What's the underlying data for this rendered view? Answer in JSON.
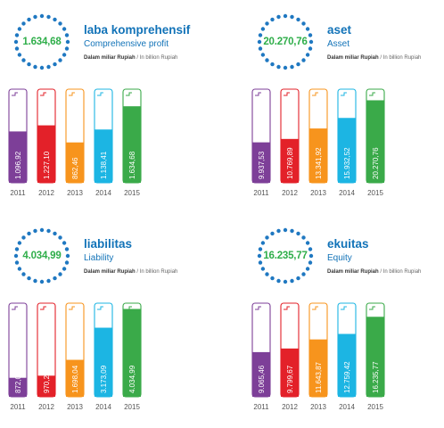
{
  "panels": [
    {
      "big_value": "1.634,68",
      "title": "laba komprehensif",
      "subtitle": "Comprehensive profit",
      "unit_id": "Dalam miliar Rupiah",
      "unit_en": " / In billion Rupiah"
    },
    {
      "big_value": "20.270,76",
      "title": "aset",
      "subtitle": "Asset",
      "unit_id": "Dalam miliar Rupiah",
      "unit_en": " / In billion Rupiah"
    },
    {
      "big_value": "4.034,99",
      "title": "liabilitas",
      "subtitle": "Liability",
      "unit_id": "Dalam miliar Rupiah",
      "unit_en": " / In billion Rupiah"
    },
    {
      "big_value": "16.235,77",
      "title": "ekuitas",
      "subtitle": "Equity",
      "unit_id": "Dalam miliar Rupiah",
      "unit_en": " / In billion Rupiah"
    }
  ],
  "colors": {
    "years": [
      "#7d3f98",
      "#e32129",
      "#f7941d",
      "#1cb5e3",
      "#3aaa49"
    ],
    "dots": "#1f78c1",
    "title": "#1273b8",
    "big_value": "#2fae4a"
  },
  "chart_data": [
    {
      "type": "bar",
      "title": "laba komprehensif",
      "subtitle": "Comprehensive profit",
      "categories": [
        "2011",
        "2012",
        "2013",
        "2014",
        "2015"
      ],
      "values": [
        1096.92,
        1227.1,
        862.46,
        1138.41,
        1634.68
      ],
      "labels": [
        "1.096,92",
        "1.227,10",
        "862,46",
        "1.138,41",
        "1.634,68"
      ],
      "ylim": [
        0,
        2000
      ]
    },
    {
      "type": "bar",
      "title": "aset",
      "subtitle": "Asset",
      "categories": [
        "2011",
        "2012",
        "2013",
        "2014",
        "2015"
      ],
      "values": [
        9937.53,
        10769.89,
        13341.92,
        15932.52,
        20270.76
      ],
      "labels": [
        "9.937,53",
        "10.769,89",
        "13.341,92",
        "15.932,52",
        "20.270,76"
      ],
      "ylim": [
        0,
        23000
      ]
    },
    {
      "type": "bar",
      "title": "liabilitas",
      "subtitle": "Liability",
      "categories": [
        "2011",
        "2012",
        "2013",
        "2014",
        "2015"
      ],
      "values": [
        872.07,
        970.22,
        1698.04,
        3173.09,
        4034.99
      ],
      "labels": [
        "872,07",
        "970,22",
        "1.698,04",
        "3.173,09",
        "4.034,99"
      ],
      "ylim": [
        0,
        4300
      ]
    },
    {
      "type": "bar",
      "title": "ekuitas",
      "subtitle": "Equity",
      "categories": [
        "2011",
        "2012",
        "2013",
        "2014",
        "2015"
      ],
      "values": [
        9065.46,
        9799.67,
        11643.87,
        12759.42,
        16235.77
      ],
      "labels": [
        "9.065,46",
        "9.799,67",
        "11.643,87",
        "12.759,42",
        "16.235,77"
      ],
      "ylim": [
        0,
        19000
      ]
    }
  ]
}
